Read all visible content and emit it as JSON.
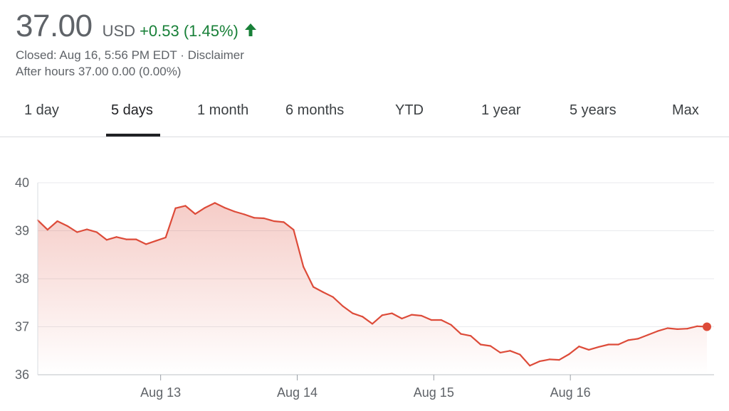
{
  "quote": {
    "price": "37.00",
    "currency": "USD",
    "change": "+0.53 (1.45%)",
    "direction_icon": "arrow-up-icon",
    "status_line": "Closed: Aug 16, 5:56 PM EDT · Disclaimer",
    "after_hours_line": "After hours 37.00 0.00 (0.00%)"
  },
  "tabs": [
    {
      "label": "1 day",
      "active": false
    },
    {
      "label": "5 days",
      "active": true
    },
    {
      "label": "1 month",
      "active": false
    },
    {
      "label": "6 months",
      "active": false
    },
    {
      "label": "YTD",
      "active": false
    },
    {
      "label": "1 year",
      "active": false
    },
    {
      "label": "5 years",
      "active": false
    },
    {
      "label": "Max",
      "active": false
    }
  ],
  "colors": {
    "line": "#dd4b39",
    "positive": "#188038",
    "grid": "#e8eaed"
  },
  "chart_data": {
    "type": "line",
    "title": "",
    "xlabel": "",
    "ylabel": "",
    "ylim": [
      36,
      40
    ],
    "yticks": [
      "36",
      "37",
      "38",
      "39",
      "40"
    ],
    "ytick_values": [
      36,
      37,
      38,
      39,
      40
    ],
    "x_tick_labels": [
      "Aug 13",
      "Aug 14",
      "Aug 15",
      "Aug 16"
    ],
    "x_tick_positions": [
      9,
      19,
      29,
      39
    ],
    "x_range": [
      0,
      49
    ],
    "grid": true,
    "fill": "area-gradient-above-line",
    "last_point_marker": true,
    "values": [
      39.22,
      39.02,
      39.2,
      39.1,
      38.97,
      39.03,
      38.97,
      38.81,
      38.87,
      38.82,
      38.82,
      38.72,
      38.79,
      38.86,
      39.47,
      39.52,
      39.35,
      39.48,
      39.58,
      39.48,
      39.4,
      39.34,
      39.27,
      39.26,
      39.2,
      39.18,
      39.02,
      38.25,
      37.83,
      37.72,
      37.62,
      37.43,
      37.28,
      37.21,
      37.06,
      37.24,
      37.28,
      37.17,
      37.25,
      37.23,
      37.14,
      37.14,
      37.04,
      36.85,
      36.81,
      36.63,
      36.6,
      36.46,
      36.5,
      36.42,
      36.19,
      36.28,
      36.32,
      36.31,
      36.43,
      36.59,
      36.52,
      36.58,
      36.63,
      36.63,
      36.72,
      36.75,
      36.83,
      36.91,
      36.97,
      36.95,
      36.96,
      37.01,
      37.0
    ]
  }
}
